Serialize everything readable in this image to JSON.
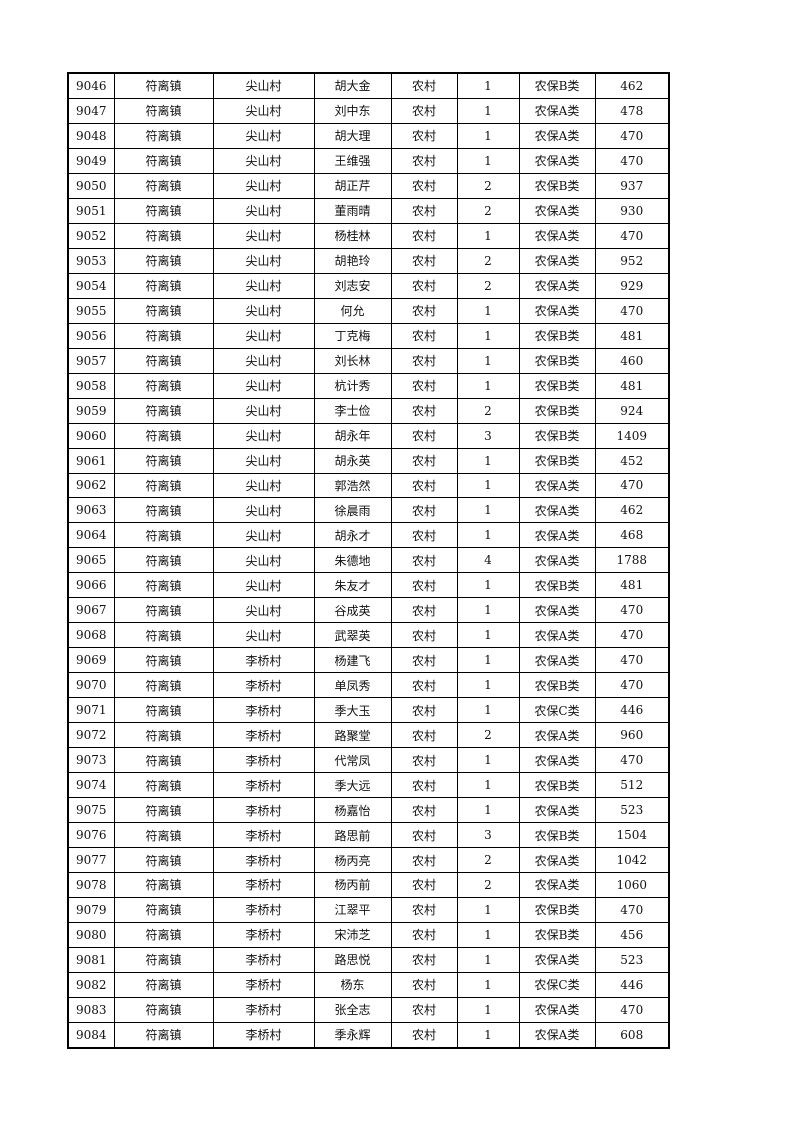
{
  "rows": [
    [
      "9046",
      "符离镇",
      "尖山村",
      "胡大金",
      "农村",
      "1",
      "农保B类",
      "462"
    ],
    [
      "9047",
      "符离镇",
      "尖山村",
      "刘中东",
      "农村",
      "1",
      "农保A类",
      "478"
    ],
    [
      "9048",
      "符离镇",
      "尖山村",
      "胡大理",
      "农村",
      "1",
      "农保A类",
      "470"
    ],
    [
      "9049",
      "符离镇",
      "尖山村",
      "王维强",
      "农村",
      "1",
      "农保A类",
      "470"
    ],
    [
      "9050",
      "符离镇",
      "尖山村",
      "胡正芹",
      "农村",
      "2",
      "农保B类",
      "937"
    ],
    [
      "9051",
      "符离镇",
      "尖山村",
      "董雨晴",
      "农村",
      "2",
      "农保A类",
      "930"
    ],
    [
      "9052",
      "符离镇",
      "尖山村",
      "杨桂林",
      "农村",
      "1",
      "农保A类",
      "470"
    ],
    [
      "9053",
      "符离镇",
      "尖山村",
      "胡艳玲",
      "农村",
      "2",
      "农保A类",
      "952"
    ],
    [
      "9054",
      "符离镇",
      "尖山村",
      "刘志安",
      "农村",
      "2",
      "农保A类",
      "929"
    ],
    [
      "9055",
      "符离镇",
      "尖山村",
      "何允",
      "农村",
      "1",
      "农保A类",
      "470"
    ],
    [
      "9056",
      "符离镇",
      "尖山村",
      "丁克梅",
      "农村",
      "1",
      "农保B类",
      "481"
    ],
    [
      "9057",
      "符离镇",
      "尖山村",
      "刘长林",
      "农村",
      "1",
      "农保B类",
      "460"
    ],
    [
      "9058",
      "符离镇",
      "尖山村",
      "杭计秀",
      "农村",
      "1",
      "农保B类",
      "481"
    ],
    [
      "9059",
      "符离镇",
      "尖山村",
      "李士俭",
      "农村",
      "2",
      "农保B类",
      "924"
    ],
    [
      "9060",
      "符离镇",
      "尖山村",
      "胡永年",
      "农村",
      "3",
      "农保B类",
      "1409"
    ],
    [
      "9061",
      "符离镇",
      "尖山村",
      "胡永英",
      "农村",
      "1",
      "农保B类",
      "452"
    ],
    [
      "9062",
      "符离镇",
      "尖山村",
      "郭浩然",
      "农村",
      "1",
      "农保A类",
      "470"
    ],
    [
      "9063",
      "符离镇",
      "尖山村",
      "徐晨雨",
      "农村",
      "1",
      "农保A类",
      "462"
    ],
    [
      "9064",
      "符离镇",
      "尖山村",
      "胡永才",
      "农村",
      "1",
      "农保A类",
      "468"
    ],
    [
      "9065",
      "符离镇",
      "尖山村",
      "朱德地",
      "农村",
      "4",
      "农保A类",
      "1788"
    ],
    [
      "9066",
      "符离镇",
      "尖山村",
      "朱友才",
      "农村",
      "1",
      "农保B类",
      "481"
    ],
    [
      "9067",
      "符离镇",
      "尖山村",
      "谷成英",
      "农村",
      "1",
      "农保A类",
      "470"
    ],
    [
      "9068",
      "符离镇",
      "尖山村",
      "武翠英",
      "农村",
      "1",
      "农保A类",
      "470"
    ],
    [
      "9069",
      "符离镇",
      "李桥村",
      "杨建飞",
      "农村",
      "1",
      "农保A类",
      "470"
    ],
    [
      "9070",
      "符离镇",
      "李桥村",
      "单凤秀",
      "农村",
      "1",
      "农保B类",
      "470"
    ],
    [
      "9071",
      "符离镇",
      "李桥村",
      "季大玉",
      "农村",
      "1",
      "农保C类",
      "446"
    ],
    [
      "9072",
      "符离镇",
      "李桥村",
      "路聚堂",
      "农村",
      "2",
      "农保A类",
      "960"
    ],
    [
      "9073",
      "符离镇",
      "李桥村",
      "代常凤",
      "农村",
      "1",
      "农保A类",
      "470"
    ],
    [
      "9074",
      "符离镇",
      "李桥村",
      "季大远",
      "农村",
      "1",
      "农保B类",
      "512"
    ],
    [
      "9075",
      "符离镇",
      "李桥村",
      "杨嘉怡",
      "农村",
      "1",
      "农保A类",
      "523"
    ],
    [
      "9076",
      "符离镇",
      "李桥村",
      "路思前",
      "农村",
      "3",
      "农保B类",
      "1504"
    ],
    [
      "9077",
      "符离镇",
      "李桥村",
      "杨丙亮",
      "农村",
      "2",
      "农保A类",
      "1042"
    ],
    [
      "9078",
      "符离镇",
      "李桥村",
      "杨丙前",
      "农村",
      "2",
      "农保A类",
      "1060"
    ],
    [
      "9079",
      "符离镇",
      "李桥村",
      "江翠平",
      "农村",
      "1",
      "农保B类",
      "470"
    ],
    [
      "9080",
      "符离镇",
      "李桥村",
      "宋沛芝",
      "农村",
      "1",
      "农保B类",
      "456"
    ],
    [
      "9081",
      "符离镇",
      "李桥村",
      "路思悦",
      "农村",
      "1",
      "农保A类",
      "523"
    ],
    [
      "9082",
      "符离镇",
      "李桥村",
      "杨东",
      "农村",
      "1",
      "农保C类",
      "446"
    ],
    [
      "9083",
      "符离镇",
      "李桥村",
      "张全志",
      "农村",
      "1",
      "农保A类",
      "470"
    ],
    [
      "9084",
      "符离镇",
      "李桥村",
      "季永辉",
      "农村",
      "1",
      "农保A类",
      "608"
    ]
  ]
}
